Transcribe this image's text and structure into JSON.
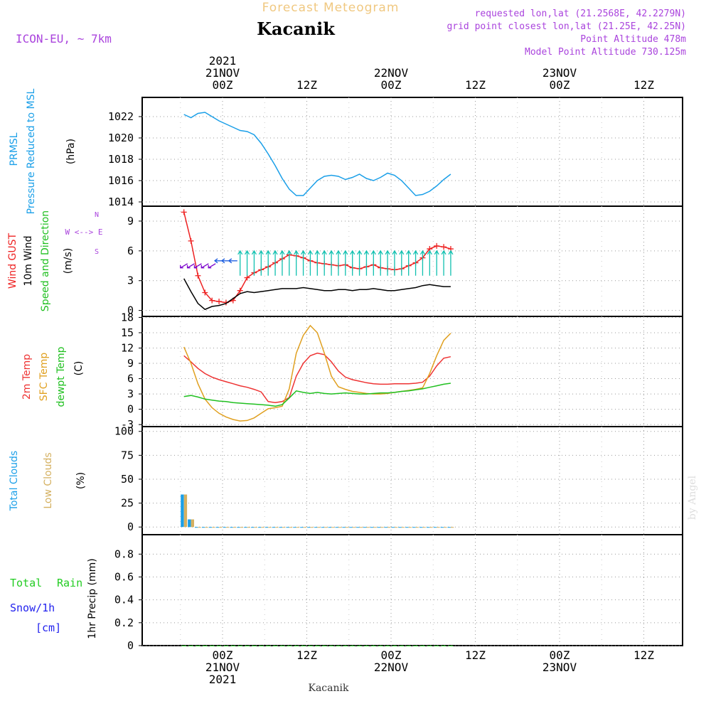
{
  "header": {
    "subtitle": "Forecast Meteogram",
    "station": "Kacanik",
    "model": "ICON-EU, ~ 7km",
    "info": [
      "requested lon,lat (21.2568E, 42.2279N)",
      "grid point closest lon,lat (21.25E, 42.25N)",
      "Point Altitude 478m",
      "Model Point Altitude 730.125m"
    ],
    "footer": "Kacanik",
    "watermark": "by Angel"
  },
  "colors": {
    "pressure": "#1a9fe8",
    "gust": "#ee2222",
    "wind": "#000000",
    "arrow_sw": "#7a00cc",
    "arrow_w": "#2060e0",
    "arrow_n": "#10c0b0",
    "temp2m": "#ee3333",
    "sfc": "#e0a020",
    "dewpt": "#20c020",
    "total_clouds": "#1a9fe8",
    "low_clouds": "#d4b060",
    "rain": "#22cc22",
    "snow": "#2222ee",
    "purple": "#aa44dd",
    "grid": "#999999"
  },
  "time_axis": {
    "top_labels": [
      {
        "t": 0,
        "lines": [
          "2021",
          "21NOV",
          "00Z"
        ]
      },
      {
        "t": 12,
        "lines": [
          "12Z"
        ]
      },
      {
        "t": 24,
        "lines": [
          "22NOV",
          "00Z"
        ]
      },
      {
        "t": 36,
        "lines": [
          "12Z"
        ]
      },
      {
        "t": 48,
        "lines": [
          "23NOV",
          "00Z"
        ]
      },
      {
        "t": 60,
        "lines": [
          "12Z"
        ]
      }
    ],
    "bottom_labels": [
      {
        "t": 0,
        "lines": [
          "00Z",
          "21NOV",
          "2021"
        ]
      },
      {
        "t": 12,
        "lines": [
          "12Z"
        ]
      },
      {
        "t": 24,
        "lines": [
          "00Z",
          "22NOV"
        ]
      },
      {
        "t": 36,
        "lines": [
          "12Z"
        ]
      },
      {
        "t": 48,
        "lines": [
          "00Z",
          "23NOV"
        ]
      },
      {
        "t": 60,
        "lines": [
          "12Z"
        ]
      }
    ],
    "range_hours": [
      -5.7,
      32.6
    ]
  },
  "chart_data": [
    {
      "type": "line",
      "panel": "pressure",
      "ylabel_lines": [
        "PRMSL",
        "Pressure Reduced to MSL"
      ],
      "units": "(hPa)",
      "yticks": [
        1014,
        1016,
        1018,
        1020,
        1022
      ],
      "ylim": [
        1013.6,
        1023.8
      ],
      "grid": true,
      "series": [
        {
          "name": "PRMSL",
          "color_key": "pressure",
          "x": [
            -5.5,
            -4.5,
            -3.5,
            -2.5,
            -1.5,
            -0.5,
            0.5,
            1.5,
            2.5,
            3.5,
            4.5,
            5.5,
            6.5,
            7.5,
            8.5,
            9.5,
            10.5,
            11.5,
            12.5,
            13.5,
            14.5,
            15.5,
            16.5,
            17.5,
            18.5,
            19.5,
            20.5,
            21.5,
            22.5,
            23.5,
            24.5,
            25.5,
            26.5,
            27.5,
            28.5,
            29.5,
            30.5,
            31.5,
            32.5
          ],
          "y": [
            1022.2,
            1021.9,
            1022.3,
            1022.4,
            1022.0,
            1021.6,
            1021.3,
            1021.0,
            1020.7,
            1020.6,
            1020.3,
            1019.5,
            1018.5,
            1017.4,
            1016.2,
            1015.2,
            1014.6,
            1014.6,
            1015.3,
            1016.0,
            1016.4,
            1016.5,
            1016.4,
            1016.1,
            1016.3,
            1016.6,
            1016.2,
            1016.0,
            1016.3,
            1016.7,
            1016.5,
            1016.0,
            1015.3,
            1014.6,
            1014.7,
            1015.0,
            1015.5,
            1016.1,
            1016.6
          ]
        }
      ]
    },
    {
      "type": "line",
      "panel": "wind",
      "ylabel_lines": [
        "Wind GUST",
        "10m Wind",
        "Speed and Direction"
      ],
      "units": "(m/s)",
      "compass": "W <--> E",
      "yticks": [
        0,
        3,
        6,
        9
      ],
      "ylim": [
        -0.6,
        10.5
      ],
      "grid": true,
      "series": [
        {
          "name": "Wind GUST",
          "color_key": "gust",
          "marker": "+",
          "x": [
            -5.5,
            -4.5,
            -3.5,
            -2.5,
            -1.5,
            -0.5,
            0.5,
            1.5,
            2.5,
            3.5,
            4.5,
            5.5,
            6.5,
            7.5,
            8.5,
            9.5,
            10.5,
            11.5,
            12.5,
            13.5,
            14.5,
            15.5,
            16.5,
            17.5,
            18.5,
            19.5,
            20.5,
            21.5,
            22.5,
            23.5,
            24.5,
            25.5,
            26.5,
            27.5,
            28.5,
            29.5,
            30.5,
            31.5,
            32.5
          ],
          "y": [
            9.9,
            7.0,
            3.5,
            1.8,
            1.0,
            0.9,
            0.8,
            1.0,
            2.0,
            3.3,
            3.8,
            4.1,
            4.4,
            4.8,
            5.2,
            5.6,
            5.5,
            5.3,
            5.0,
            4.8,
            4.7,
            4.6,
            4.5,
            4.6,
            4.3,
            4.2,
            4.4,
            4.6,
            4.3,
            4.2,
            4.1,
            4.2,
            4.5,
            4.8,
            5.3,
            6.2,
            6.5,
            6.4,
            6.2
          ]
        },
        {
          "name": "10m Wind",
          "color_key": "wind",
          "x": [
            -5.5,
            -4.5,
            -3.5,
            -2.5,
            -1.5,
            -0.5,
            0.5,
            1.5,
            2.5,
            3.5,
            4.5,
            5.5,
            6.5,
            7.5,
            8.5,
            9.5,
            10.5,
            11.5,
            12.5,
            13.5,
            14.5,
            15.5,
            16.5,
            17.5,
            18.5,
            19.5,
            20.5,
            21.5,
            22.5,
            23.5,
            24.5,
            25.5,
            26.5,
            27.5,
            28.5,
            29.5,
            30.5,
            31.5,
            32.5
          ],
          "y": [
            3.2,
            1.9,
            0.7,
            0.1,
            0.4,
            0.5,
            0.7,
            1.2,
            1.7,
            1.9,
            1.8,
            1.9,
            2.0,
            2.1,
            2.2,
            2.2,
            2.2,
            2.3,
            2.2,
            2.1,
            2.0,
            2.0,
            2.1,
            2.1,
            2.0,
            2.1,
            2.1,
            2.2,
            2.1,
            2.0,
            2.0,
            2.1,
            2.2,
            2.3,
            2.5,
            2.6,
            2.5,
            2.4,
            2.4
          ]
        }
      ],
      "arrows_dir": [
        "sw",
        "sw",
        "sw",
        "sw",
        "sw",
        "w",
        "w",
        "w",
        "n",
        "n",
        "n",
        "n",
        "n",
        "n",
        "n",
        "n",
        "n",
        "n",
        "n",
        "n",
        "n",
        "n",
        "n",
        "n",
        "n",
        "n",
        "n",
        "n",
        "n",
        "n",
        "n",
        "n",
        "n",
        "n",
        "n",
        "n",
        "n",
        "n",
        "n"
      ]
    },
    {
      "type": "line",
      "panel": "temperature",
      "ylabel_lines": [
        "2m Temp",
        "SFC Temp",
        "dewpt Temp"
      ],
      "units": "(C)",
      "yticks": [
        -3,
        0,
        3,
        6,
        9,
        12,
        15,
        18
      ],
      "ylim": [
        -3.4,
        18.2
      ],
      "grid": true,
      "series": [
        {
          "name": "2m Temp",
          "color_key": "temp2m",
          "x": [
            -5.5,
            -4.5,
            -3.5,
            -2.5,
            -1.5,
            -0.5,
            0.5,
            1.5,
            2.5,
            3.5,
            4.5,
            5.5,
            6.5,
            7.5,
            8.5,
            9.5,
            10.5,
            11.5,
            12.5,
            13.5,
            14.5,
            15.5,
            16.5,
            17.5,
            18.5,
            19.5,
            20.5,
            21.5,
            22.5,
            23.5,
            24.5,
            25.5,
            26.5,
            27.5,
            28.5,
            29.5,
            30.5,
            31.5,
            32.5
          ],
          "y": [
            10.5,
            9.3,
            8.0,
            7.0,
            6.3,
            5.8,
            5.4,
            5.0,
            4.6,
            4.3,
            3.9,
            3.4,
            1.5,
            1.3,
            1.5,
            2.3,
            6.5,
            9.0,
            10.5,
            11.0,
            10.7,
            9.3,
            7.5,
            6.3,
            5.8,
            5.5,
            5.2,
            5.0,
            4.9,
            4.9,
            5.0,
            5.0,
            5.0,
            5.1,
            5.3,
            6.5,
            8.5,
            10.0,
            10.3
          ]
        },
        {
          "name": "SFC Temp",
          "color_key": "sfc",
          "x": [
            -5.5,
            -4.5,
            -3.5,
            -2.5,
            -1.5,
            -0.5,
            0.5,
            1.5,
            2.5,
            3.5,
            4.5,
            5.5,
            6.5,
            7.5,
            8.5,
            9.5,
            10.5,
            11.5,
            12.5,
            13.5,
            14.5,
            15.5,
            16.5,
            17.5,
            18.5,
            19.5,
            20.5,
            21.5,
            22.5,
            23.5,
            24.5,
            25.5,
            26.5,
            27.5,
            28.5,
            29.5,
            30.5,
            31.5,
            32.5
          ],
          "y": [
            12.2,
            9.0,
            5.0,
            2.0,
            0.3,
            -0.8,
            -1.5,
            -2.0,
            -2.3,
            -2.2,
            -1.7,
            -0.8,
            0.1,
            0.3,
            0.6,
            4.0,
            11.0,
            14.5,
            16.4,
            15.0,
            11.0,
            6.5,
            4.4,
            3.9,
            3.5,
            3.3,
            3.1,
            3.0,
            3.0,
            3.1,
            3.3,
            3.5,
            3.7,
            3.9,
            4.2,
            7.0,
            10.5,
            13.5,
            14.9
          ]
        },
        {
          "name": "dewpt Temp",
          "color_key": "dewpt",
          "x": [
            -5.5,
            -4.5,
            -3.5,
            -2.5,
            -1.5,
            -0.5,
            0.5,
            1.5,
            2.5,
            3.5,
            4.5,
            5.5,
            6.5,
            7.5,
            8.5,
            9.5,
            10.5,
            11.5,
            12.5,
            13.5,
            14.5,
            15.5,
            16.5,
            17.5,
            18.5,
            19.5,
            20.5,
            21.5,
            22.5,
            23.5,
            24.5,
            25.5,
            26.5,
            27.5,
            28.5,
            29.5,
            30.5,
            31.5,
            32.5
          ],
          "y": [
            2.5,
            2.7,
            2.4,
            2.0,
            1.8,
            1.6,
            1.5,
            1.3,
            1.2,
            1.1,
            1.0,
            0.9,
            0.8,
            0.6,
            0.9,
            2.2,
            3.6,
            3.3,
            3.1,
            3.3,
            3.1,
            3.0,
            3.1,
            3.2,
            3.1,
            3.0,
            3.0,
            3.1,
            3.2,
            3.2,
            3.3,
            3.5,
            3.6,
            3.8,
            4.0,
            4.3,
            4.6,
            4.9,
            5.1
          ]
        }
      ]
    },
    {
      "type": "bar",
      "panel": "clouds",
      "ylabel_lines": [
        "Total Clouds",
        "Low Clouds"
      ],
      "units": "(%)",
      "yticks": [
        0,
        25,
        50,
        75,
        100
      ],
      "ylim": [
        -8,
        105
      ],
      "grid": true,
      "series": [
        {
          "name": "Total Clouds",
          "color_key": "total_clouds",
          "x": [
            -5.5,
            -4.5,
            -3.5,
            -2.5,
            -1.5,
            -0.5,
            0.5,
            1.5,
            2.5,
            3.5,
            4.5,
            5.5,
            6.5,
            7.5,
            8.5,
            9.5,
            10.5,
            11.5,
            12.5,
            13.5,
            14.5,
            15.5,
            16.5,
            17.5,
            18.5,
            19.5,
            20.5,
            21.5,
            22.5,
            23.5,
            24.5,
            25.5,
            26.5,
            27.5,
            28.5,
            29.5,
            30.5,
            31.5,
            32.5
          ],
          "y": [
            34,
            8,
            0,
            0,
            0,
            0,
            0,
            0,
            0,
            0,
            0,
            0,
            0,
            0,
            0,
            0,
            0,
            0,
            0,
            0,
            0,
            0,
            0,
            0,
            0,
            0,
            0,
            0,
            0,
            0,
            0,
            0,
            0,
            0,
            0,
            0,
            0,
            0,
            0
          ]
        },
        {
          "name": "Low Clouds",
          "color_key": "low_clouds",
          "x": [
            -5.5,
            -4.5,
            -3.5,
            -2.5,
            -1.5,
            -0.5,
            0.5,
            1.5,
            2.5,
            3.5,
            4.5,
            5.5,
            6.5,
            7.5,
            8.5,
            9.5,
            10.5,
            11.5,
            12.5,
            13.5,
            14.5,
            15.5,
            16.5,
            17.5,
            18.5,
            19.5,
            20.5,
            21.5,
            22.5,
            23.5,
            24.5,
            25.5,
            26.5,
            27.5,
            28.5,
            29.5,
            30.5,
            31.5,
            32.5
          ],
          "y": [
            34,
            8,
            0,
            0,
            0,
            0,
            0,
            0,
            0,
            0,
            0,
            0,
            0,
            0,
            0,
            0,
            0,
            0,
            0,
            0,
            0,
            0,
            0,
            0,
            0,
            0,
            0,
            0,
            0,
            0,
            0,
            0,
            0,
            0,
            0,
            0,
            0,
            0,
            0
          ]
        }
      ]
    },
    {
      "type": "bar",
      "panel": "precip",
      "left_labels": [
        "Total",
        "Rain",
        "Snow/1h",
        "[cm]"
      ],
      "ylabel": "1hr Precip (mm)",
      "yticks": [
        0,
        0.2,
        0.4,
        0.6,
        0.8
      ],
      "ylim": [
        0,
        0.97
      ],
      "grid": true,
      "series": [
        {
          "name": "Total Rain",
          "color_key": "rain",
          "x": [
            -5.5,
            -4.5,
            -3.5,
            -2.5,
            -1.5,
            -0.5,
            0.5,
            1.5,
            2.5,
            3.5,
            4.5,
            5.5,
            6.5,
            7.5,
            8.5,
            9.5,
            10.5,
            11.5,
            12.5,
            13.5,
            14.5,
            15.5,
            16.5,
            17.5,
            18.5,
            19.5,
            20.5,
            21.5,
            22.5,
            23.5,
            24.5,
            25.5,
            26.5,
            27.5,
            28.5,
            29.5,
            30.5,
            31.5,
            32.5
          ],
          "y": [
            0,
            0,
            0,
            0,
            0,
            0,
            0,
            0,
            0,
            0,
            0,
            0,
            0,
            0,
            0,
            0,
            0,
            0,
            0,
            0,
            0,
            0,
            0,
            0,
            0,
            0,
            0,
            0,
            0,
            0,
            0,
            0,
            0,
            0,
            0,
            0,
            0,
            0,
            0
          ]
        }
      ]
    }
  ]
}
